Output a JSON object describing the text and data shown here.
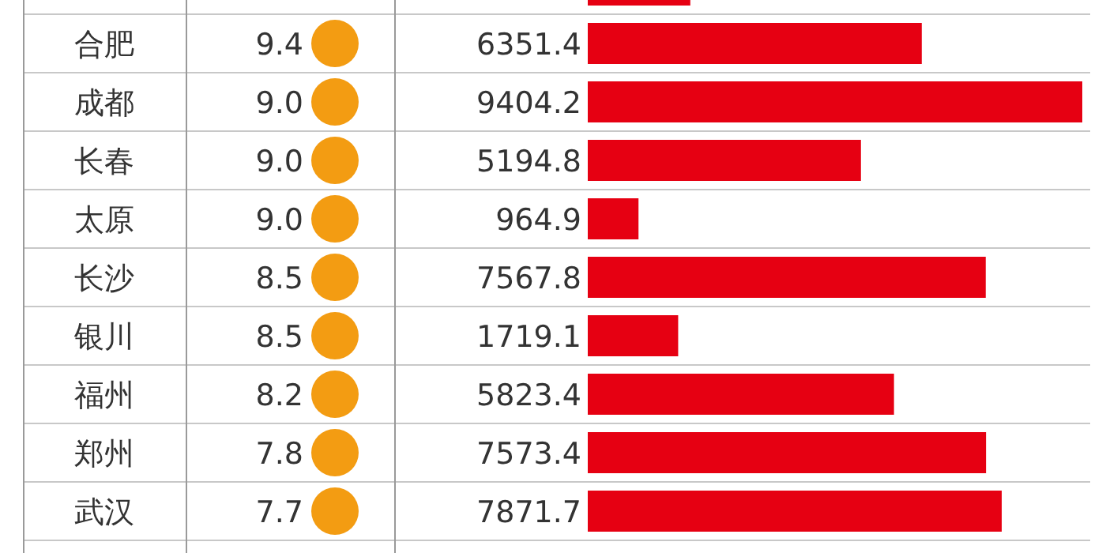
{
  "chart_data": [
    {
      "type": "other",
      "categories": [
        null,
        "合肥",
        "成都",
        "长春",
        "太原",
        "长沙",
        "银川",
        "福州",
        "郑州",
        "武汉"
      ],
      "values": [
        null,
        9.4,
        9.0,
        9.0,
        9.0,
        8.5,
        8.5,
        8.2,
        7.8,
        7.7
      ],
      "value_labels": [
        null,
        "9.4",
        "9.0",
        "9.0",
        "9.0",
        "8.5",
        "8.5",
        "8.2",
        "7.8",
        "7.7"
      ],
      "color": "#f39c12"
    },
    {
      "type": "bar",
      "orientation": "horizontal",
      "categories": [
        null,
        null,
        null,
        null,
        null,
        null,
        null,
        null,
        null,
        null
      ],
      "values": [
        1950,
        6351.4,
        9404.2,
        5194.8,
        964.9,
        7567.8,
        1719.1,
        5823.4,
        7573.4,
        7871.7
      ],
      "value_labels": [
        null,
        "6351.4",
        "9404.2",
        "5194.8",
        "964.9",
        "7567.8",
        "1719.1",
        "5823.4",
        "7573.4",
        "7871.7"
      ],
      "color": "#e60012"
    }
  ]
}
